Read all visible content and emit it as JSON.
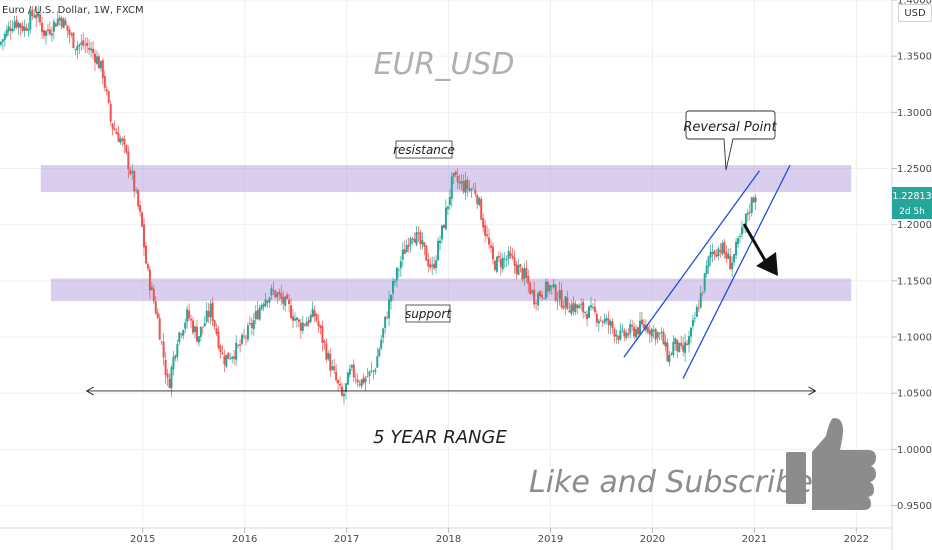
{
  "header": {
    "title": "Euro / U.S. Dollar, 1W, FXCM",
    "currency_badge": "USD",
    "watermark": "EUR_USD"
  },
  "annotations": {
    "resistance_label": "resistance",
    "support_label": "support",
    "reversal_label": "Reversal Point",
    "range_label": "5 YEAR RANGE",
    "subscribe_label": "Like and Subscribe!"
  },
  "price_tag": {
    "value": "1.22813",
    "countdown": "2d 5h",
    "color": "#26a69a"
  },
  "colors": {
    "up_candle": "#26a69a",
    "down_candle": "#ef5350",
    "zone_fill": "#b39ddb",
    "channel": "#1e4fd8",
    "watermark": "#b0b0b0"
  },
  "icons": {
    "thumbs_up": "thumbs-up-icon",
    "down_arrow": "arrow-down-icon"
  },
  "chart_data": {
    "type": "candlestick",
    "title": "Euro / U.S. Dollar, 1W, FXCM",
    "x_ticks": [
      "2015",
      "2016",
      "2017",
      "2018",
      "2019",
      "2020",
      "2021",
      "2022"
    ],
    "y_ticks": [
      "0.95000",
      "1.00000",
      "1.05000",
      "1.10000",
      "1.15000",
      "1.20000",
      "1.25000",
      "1.30000",
      "1.35000",
      "1.40000"
    ],
    "ylim": [
      0.93,
      1.4
    ],
    "xlim": [
      2013.6,
      2022.35
    ],
    "zones": [
      {
        "label": "resistance",
        "low": 1.229,
        "high": 1.253,
        "x_from": 2014.0,
        "x_to": 2021.95
      },
      {
        "label": "support",
        "low": 1.132,
        "high": 1.152,
        "x_from": 2014.1,
        "x_to": 2021.95
      }
    ],
    "channel": {
      "lower": [
        [
          2019.72,
          1.082
        ],
        [
          2021.05,
          1.248
        ]
      ],
      "upper": [
        [
          2020.3,
          1.063
        ],
        [
          2021.35,
          1.253
        ]
      ]
    },
    "range_arrow": {
      "from": 2014.45,
      "to": 2021.6,
      "level": 1.052
    },
    "keypoints": [
      [
        2013.6,
        1.36
      ],
      [
        2013.75,
        1.382
      ],
      [
        2013.85,
        1.375
      ],
      [
        2013.95,
        1.39
      ],
      [
        2014.05,
        1.37
      ],
      [
        2014.2,
        1.385
      ],
      [
        2014.35,
        1.36
      ],
      [
        2014.45,
        1.36
      ],
      [
        2014.55,
        1.35
      ],
      [
        2014.62,
        1.335
      ],
      [
        2014.7,
        1.29
      ],
      [
        2014.8,
        1.275
      ],
      [
        2014.9,
        1.245
      ],
      [
        2015.0,
        1.2
      ],
      [
        2015.05,
        1.16
      ],
      [
        2015.15,
        1.12
      ],
      [
        2015.22,
        1.08
      ],
      [
        2015.26,
        1.055
      ],
      [
        2015.35,
        1.1
      ],
      [
        2015.45,
        1.12
      ],
      [
        2015.55,
        1.1
      ],
      [
        2015.68,
        1.125
      ],
      [
        2015.8,
        1.08
      ],
      [
        2015.95,
        1.09
      ],
      [
        2016.08,
        1.11
      ],
      [
        2016.2,
        1.135
      ],
      [
        2016.3,
        1.14
      ],
      [
        2016.45,
        1.125
      ],
      [
        2016.55,
        1.11
      ],
      [
        2016.7,
        1.12
      ],
      [
        2016.85,
        1.075
      ],
      [
        2016.97,
        1.045
      ],
      [
        2017.05,
        1.07
      ],
      [
        2017.15,
        1.06
      ],
      [
        2017.28,
        1.07
      ],
      [
        2017.38,
        1.11
      ],
      [
        2017.45,
        1.14
      ],
      [
        2017.55,
        1.17
      ],
      [
        2017.65,
        1.195
      ],
      [
        2017.75,
        1.18
      ],
      [
        2017.85,
        1.16
      ],
      [
        2017.95,
        1.195
      ],
      [
        2018.05,
        1.24
      ],
      [
        2018.15,
        1.235
      ],
      [
        2018.28,
        1.23
      ],
      [
        2018.38,
        1.19
      ],
      [
        2018.45,
        1.165
      ],
      [
        2018.6,
        1.17
      ],
      [
        2018.75,
        1.155
      ],
      [
        2018.85,
        1.135
      ],
      [
        2019.0,
        1.145
      ],
      [
        2019.15,
        1.13
      ],
      [
        2019.3,
        1.125
      ],
      [
        2019.45,
        1.12
      ],
      [
        2019.6,
        1.11
      ],
      [
        2019.7,
        1.1
      ],
      [
        2019.8,
        1.105
      ],
      [
        2019.95,
        1.11
      ],
      [
        2020.1,
        1.1
      ],
      [
        2020.17,
        1.08
      ],
      [
        2020.22,
        1.095
      ],
      [
        2020.3,
        1.085
      ],
      [
        2020.38,
        1.1
      ],
      [
        2020.48,
        1.135
      ],
      [
        2020.58,
        1.175
      ],
      [
        2020.68,
        1.18
      ],
      [
        2020.78,
        1.165
      ],
      [
        2020.88,
        1.19
      ],
      [
        2020.96,
        1.215
      ],
      [
        2021.02,
        1.228
      ]
    ]
  }
}
